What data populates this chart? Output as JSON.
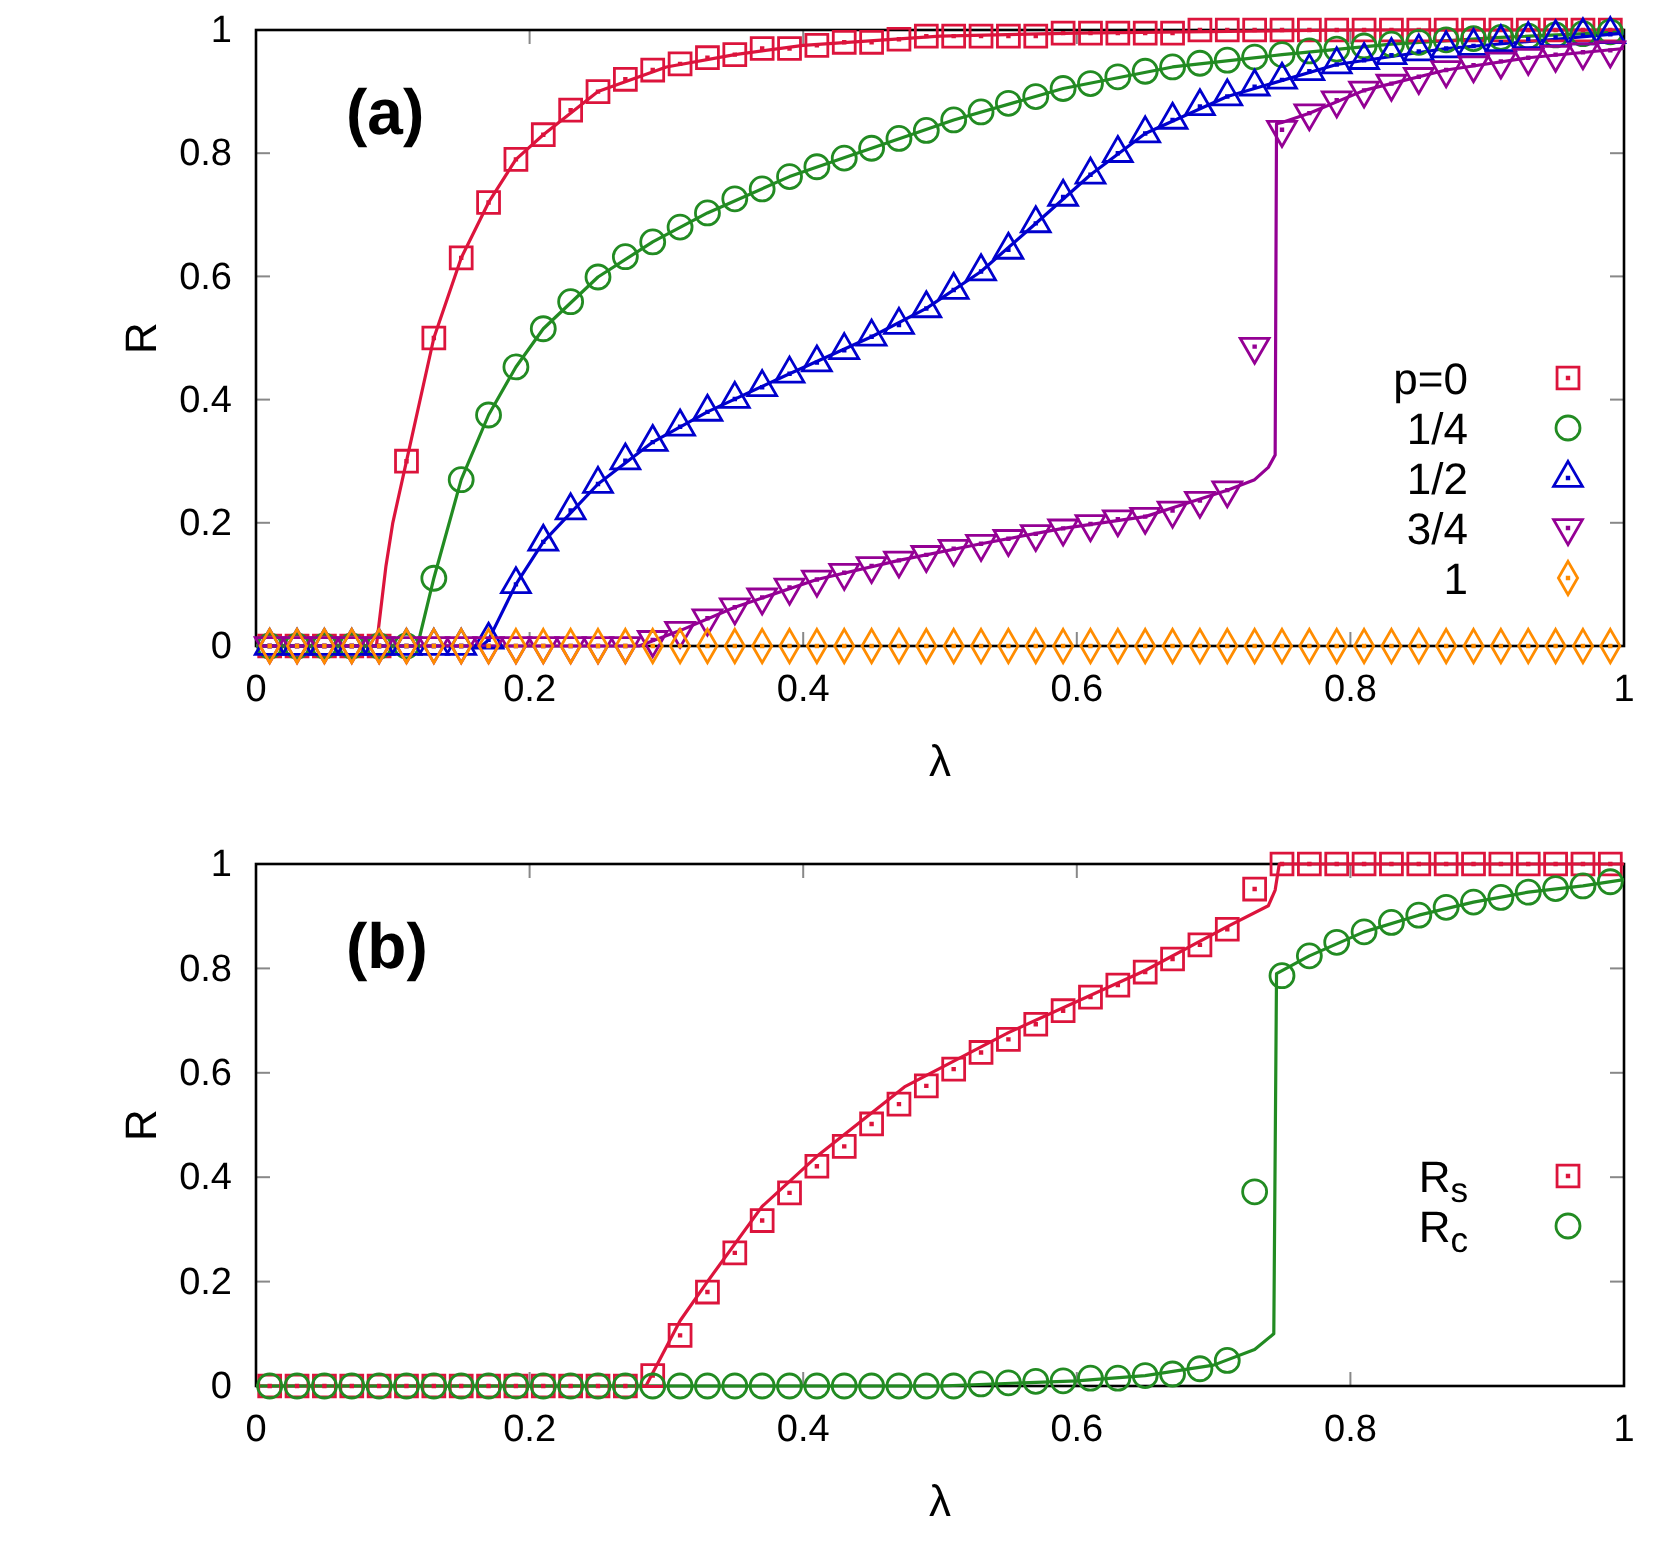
{
  "chart_data": [
    {
      "type": "scatter",
      "xlabel": "λ",
      "ylabel": "R",
      "annotations": [
        "(a)"
      ],
      "xlim": [
        0,
        1
      ],
      "ylim": [
        0,
        1
      ],
      "xticks": [
        0,
        0.2,
        0.4,
        0.6,
        0.8,
        1
      ],
      "yticks": [
        0,
        0.2,
        0.4,
        0.6,
        0.8,
        1
      ],
      "grid": false,
      "legend": "right",
      "x": [
        0.01,
        0.03,
        0.05,
        0.07,
        0.09,
        0.11,
        0.13,
        0.15,
        0.17,
        0.19,
        0.21,
        0.23,
        0.25,
        0.27,
        0.29,
        0.31,
        0.33,
        0.35,
        0.37,
        0.39,
        0.41,
        0.43,
        0.45,
        0.47,
        0.49,
        0.51,
        0.53,
        0.55,
        0.57,
        0.59,
        0.61,
        0.63,
        0.65,
        0.67,
        0.69,
        0.71,
        0.73,
        0.75,
        0.77,
        0.79,
        0.81,
        0.83,
        0.85,
        0.87,
        0.89,
        0.91,
        0.93,
        0.95,
        0.97,
        0.99
      ],
      "series": [
        {
          "type": "line",
          "color": "#dc143c",
          "marker": "none",
          "x": [
            0,
            0.088,
            0.095,
            0.1,
            0.11,
            0.13,
            0.15,
            0.17,
            0.19,
            0.21,
            0.25,
            0.3,
            0.35,
            0.4,
            0.5,
            0.6,
            0.8,
            1
          ],
          "values": [
            0,
            0,
            0.13,
            0.2,
            0.3,
            0.5,
            0.63,
            0.72,
            0.79,
            0.83,
            0.9,
            0.94,
            0.96,
            0.975,
            0.99,
            0.995,
            1,
            1
          ]
        },
        {
          "type": "line",
          "color": "#228b22",
          "marker": "none",
          "x": [
            0,
            0.118,
            0.13,
            0.15,
            0.17,
            0.19,
            0.21,
            0.25,
            0.29,
            0.33,
            0.39,
            0.45,
            0.51,
            0.59,
            0.67,
            0.75,
            0.83,
            0.91,
            1
          ],
          "values": [
            0,
            0,
            0.11,
            0.27,
            0.375,
            0.453,
            0.515,
            0.599,
            0.656,
            0.703,
            0.762,
            0.808,
            0.854,
            0.905,
            0.94,
            0.96,
            0.977,
            0.988,
            0.997
          ]
        },
        {
          "type": "line",
          "color": "#0000cd",
          "marker": "none",
          "x": [
            0,
            0.165,
            0.17,
            0.19,
            0.21,
            0.25,
            0.29,
            0.33,
            0.39,
            0.45,
            0.49,
            0.53,
            0.57,
            0.61,
            0.65,
            0.71,
            0.79,
            0.87,
            0.95,
            1
          ],
          "values": [
            0,
            0,
            0.01,
            0.1,
            0.169,
            0.263,
            0.331,
            0.38,
            0.442,
            0.502,
            0.548,
            0.608,
            0.686,
            0.765,
            0.832,
            0.892,
            0.944,
            0.97,
            0.985,
            0.995
          ]
        },
        {
          "type": "line",
          "color": "#940094",
          "marker": "none",
          "x": [
            0,
            0.28,
            0.31,
            0.35,
            0.41,
            0.47,
            0.53,
            0.59,
            0.65,
            0.71,
            0.73,
            0.74,
            0.745,
            0.746,
            0.75,
            0.77,
            0.81,
            0.87,
            0.93,
            1
          ],
          "values": [
            0,
            0,
            0.025,
            0.063,
            0.108,
            0.139,
            0.166,
            0.191,
            0.21,
            0.253,
            0.27,
            0.29,
            0.31,
            0.848,
            0.85,
            0.865,
            0.902,
            0.935,
            0.955,
            0.97
          ]
        },
        {
          "name": "p=0",
          "color": "#dc143c",
          "marker": "square",
          "values": [
            0,
            0,
            0,
            0,
            0,
            0.3,
            0.5,
            0.63,
            0.72,
            0.79,
            0.83,
            0.87,
            0.9,
            0.92,
            0.935,
            0.945,
            0.955,
            0.96,
            0.97,
            0.97,
            0.975,
            0.98,
            0.98,
            0.985,
            0.99,
            0.99,
            0.99,
            0.99,
            0.99,
            0.995,
            0.995,
            0.995,
            0.995,
            0.995,
            1,
            1,
            1,
            1,
            1,
            1,
            1,
            1,
            1,
            1,
            1,
            1,
            1,
            1,
            1,
            1
          ]
        },
        {
          "name": "1/4",
          "color": "#228b22",
          "marker": "circle",
          "values": [
            0,
            0,
            0,
            0,
            0,
            0,
            0.11,
            0.27,
            0.375,
            0.453,
            0.515,
            0.559,
            0.599,
            0.632,
            0.656,
            0.68,
            0.703,
            0.726,
            0.742,
            0.762,
            0.778,
            0.792,
            0.808,
            0.824,
            0.837,
            0.854,
            0.867,
            0.881,
            0.892,
            0.905,
            0.913,
            0.924,
            0.933,
            0.94,
            0.946,
            0.951,
            0.956,
            0.96,
            0.966,
            0.969,
            0.974,
            0.977,
            0.98,
            0.984,
            0.986,
            0.988,
            0.99,
            0.992,
            0.994,
            0.997
          ]
        },
        {
          "name": "1/2",
          "color": "#0000cd",
          "marker": "triangle",
          "values": [
            0,
            0,
            0,
            0,
            0,
            0,
            0,
            0,
            0.01,
            0.1,
            0.169,
            0.22,
            0.263,
            0.301,
            0.331,
            0.356,
            0.38,
            0.401,
            0.42,
            0.442,
            0.46,
            0.48,
            0.502,
            0.521,
            0.548,
            0.578,
            0.608,
            0.643,
            0.686,
            0.729,
            0.765,
            0.8,
            0.832,
            0.854,
            0.876,
            0.892,
            0.908,
            0.919,
            0.933,
            0.944,
            0.951,
            0.959,
            0.965,
            0.97,
            0.974,
            0.98,
            0.985,
            0.988,
            0.991,
            0.993
          ]
        },
        {
          "name": "3/4",
          "color": "#940094",
          "marker": "triangle-down",
          "values": [
            0,
            0,
            0,
            0,
            0,
            0,
            0,
            0,
            0,
            0,
            0,
            0,
            0,
            0,
            0.01,
            0.025,
            0.045,
            0.063,
            0.079,
            0.095,
            0.108,
            0.119,
            0.13,
            0.139,
            0.148,
            0.158,
            0.166,
            0.174,
            0.182,
            0.191,
            0.198,
            0.206,
            0.21,
            0.22,
            0.236,
            0.253,
            0.486,
            0.838,
            0.865,
            0.886,
            0.902,
            0.913,
            0.924,
            0.935,
            0.943,
            0.949,
            0.955,
            0.96,
            0.964,
            0.967
          ]
        },
        {
          "name": "1",
          "color": "#ff8c00",
          "marker": "diamond",
          "values": [
            0,
            0,
            0,
            0,
            0,
            0,
            0,
            0,
            0,
            0,
            0,
            0,
            0,
            0,
            0,
            0,
            0,
            0,
            0,
            0,
            0,
            0,
            0,
            0,
            0,
            0,
            0,
            0,
            0,
            0,
            0,
            0,
            0,
            0,
            0,
            0,
            0,
            0,
            0,
            0,
            0,
            0,
            0,
            0,
            0,
            0,
            0,
            0,
            0,
            0
          ]
        }
      ]
    },
    {
      "type": "scatter",
      "xlabel": "λ",
      "ylabel": "R",
      "annotations": [
        "(b)"
      ],
      "xlim": [
        0,
        1
      ],
      "ylim": [
        0,
        1
      ],
      "xticks": [
        0,
        0.2,
        0.4,
        0.6,
        0.8,
        1
      ],
      "yticks": [
        0,
        0.2,
        0.4,
        0.6,
        0.8,
        1
      ],
      "grid": false,
      "legend": "bottom right",
      "x": [
        0.01,
        0.03,
        0.05,
        0.07,
        0.09,
        0.11,
        0.13,
        0.15,
        0.17,
        0.19,
        0.21,
        0.23,
        0.25,
        0.27,
        0.29,
        0.31,
        0.33,
        0.35,
        0.37,
        0.39,
        0.41,
        0.43,
        0.45,
        0.47,
        0.49,
        0.51,
        0.53,
        0.55,
        0.57,
        0.59,
        0.61,
        0.63,
        0.65,
        0.67,
        0.69,
        0.71,
        0.73,
        0.75,
        0.77,
        0.79,
        0.81,
        0.83,
        0.85,
        0.87,
        0.89,
        0.91,
        0.93,
        0.95,
        0.97,
        0.99
      ],
      "series": [
        {
          "type": "line",
          "color": "#dc143c",
          "marker": "none",
          "x": [
            0,
            0.285,
            0.31,
            0.33,
            0.37,
            0.41,
            0.474,
            0.523,
            0.55,
            0.65,
            0.71,
            0.74,
            0.745,
            0.748,
            1
          ],
          "values": [
            0,
            0,
            0.125,
            0.2,
            0.344,
            0.44,
            0.573,
            0.64,
            0.677,
            0.796,
            0.88,
            0.92,
            0.95,
            1,
            1
          ]
        },
        {
          "type": "line",
          "color": "#228b22",
          "marker": "none",
          "x": [
            0,
            0.5,
            0.6,
            0.65,
            0.7,
            0.73,
            0.744,
            0.746,
            0.77,
            0.81,
            0.85,
            0.89,
            0.93,
            0.97,
            1
          ],
          "values": [
            0,
            0,
            0.01,
            0.02,
            0.04,
            0.07,
            0.1,
            0.79,
            0.824,
            0.87,
            0.902,
            0.927,
            0.946,
            0.958,
            0.97
          ]
        },
        {
          "name": "R$_{s}$",
          "color": "#dc143c",
          "marker": "square",
          "values": [
            0,
            0,
            0,
            0,
            0,
            0,
            0,
            0,
            0,
            0,
            0,
            0,
            0,
            0,
            0.02,
            0.097,
            0.18,
            0.255,
            0.317,
            0.37,
            0.421,
            0.459,
            0.502,
            0.54,
            0.575,
            0.607,
            0.639,
            0.664,
            0.693,
            0.719,
            0.745,
            0.768,
            0.793,
            0.818,
            0.845,
            0.875,
            0.952,
            1,
            1,
            1,
            1,
            1,
            1,
            1,
            1,
            1,
            1,
            1,
            1,
            1
          ]
        },
        {
          "name": "R$_{c}$",
          "color": "#228b22",
          "marker": "circle",
          "values": [
            0,
            0,
            0,
            0,
            0,
            0,
            0,
            0,
            0,
            0,
            0,
            0,
            0,
            0,
            0,
            0,
            0,
            0,
            0,
            0,
            0,
            0,
            0,
            0,
            0,
            0,
            0.004,
            0.006,
            0.009,
            0.01,
            0.015,
            0.015,
            0.02,
            0.023,
            0.033,
            0.049,
            0.372,
            0.786,
            0.824,
            0.85,
            0.87,
            0.888,
            0.902,
            0.917,
            0.927,
            0.936,
            0.946,
            0.953,
            0.958,
            0.966
          ]
        }
      ]
    }
  ]
}
